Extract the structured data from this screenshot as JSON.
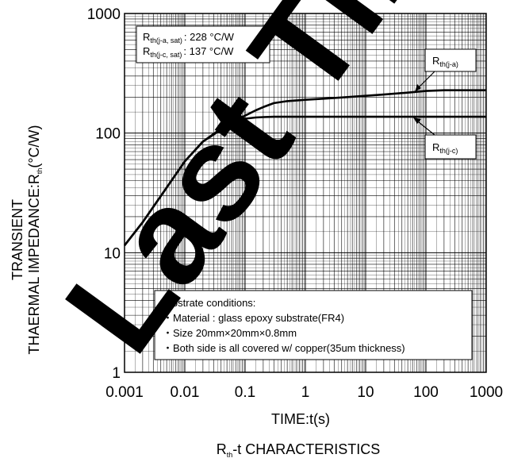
{
  "chart_data": {
    "type": "line",
    "title": "Rth-t CHARACTERISTICS",
    "title_main": "R",
    "title_sub": "th",
    "title_rest": "-t CHARACTERISTICS",
    "xlabel": "TIME:t(s)",
    "ylabel_line1": "TRANSIENT",
    "ylabel_line2_main": "THAERMAL IMPEDANCE:R",
    "ylabel_line2_sub": "th",
    "ylabel_line2_rest": "(°C/W)",
    "x_scale": "log",
    "y_scale": "log",
    "xlim": [
      0.001,
      1000
    ],
    "ylim": [
      1,
      1000
    ],
    "grid": true,
    "x_ticks": [
      {
        "value": 0.001,
        "label": "0.001"
      },
      {
        "value": 0.01,
        "label": "0.01"
      },
      {
        "value": 0.1,
        "label": "0.1"
      },
      {
        "value": 1,
        "label": "1"
      },
      {
        "value": 10,
        "label": "10"
      },
      {
        "value": 100,
        "label": "100"
      },
      {
        "value": 1000,
        "label": "1000"
      }
    ],
    "y_ticks": [
      {
        "value": 1,
        "label": "1"
      },
      {
        "value": 10,
        "label": "10"
      },
      {
        "value": 100,
        "label": "100"
      },
      {
        "value": 1000,
        "label": "1000"
      }
    ],
    "series": [
      {
        "name": "Rth(j-a)",
        "name_main": "R",
        "name_sub": "th(j-a)",
        "x": [
          0.001,
          0.002,
          0.005,
          0.01,
          0.02,
          0.05,
          0.1,
          0.15,
          0.2,
          0.3,
          0.5,
          1,
          2,
          5,
          10,
          20,
          50,
          100,
          200,
          500,
          1000
        ],
        "y": [
          11.5,
          18,
          35,
          58,
          85,
          118,
          140,
          155,
          165,
          178,
          185,
          190,
          194,
          200,
          205,
          210,
          218,
          225,
          228,
          228,
          228
        ]
      },
      {
        "name": "Rth(j-c)",
        "name_main": "R",
        "name_sub": "th(j-c)",
        "x": [
          0.001,
          0.002,
          0.005,
          0.01,
          0.02,
          0.05,
          0.08,
          0.1,
          0.15,
          0.2,
          0.3,
          0.5,
          1,
          10,
          100,
          1000
        ],
        "y": [
          11.5,
          18,
          35,
          58,
          85,
          115,
          128,
          132,
          135,
          136,
          137,
          137,
          137,
          137,
          137,
          137
        ]
      }
    ],
    "info_box": {
      "rows": [
        {
          "main": "R",
          "sub": "th(j-a, sat)",
          "value": ":  228 °C/W"
        },
        {
          "main": "R",
          "sub": "th(j-c, sat)",
          "value": ":  137 °C/W"
        }
      ]
    },
    "conditions": {
      "heading": "Substrate conditions:",
      "lines": [
        "・Material : glass epoxy substrate(FR4)",
        "・Size 20mm×20mm×0.8mm",
        "・Both side is all covered w/ copper(35um thickness)"
      ]
    },
    "watermark": "Last Time",
    "colors": {
      "line": "#000000",
      "grid_major": "#000000",
      "grid_minor": "#000000",
      "watermark": "#000000"
    }
  }
}
